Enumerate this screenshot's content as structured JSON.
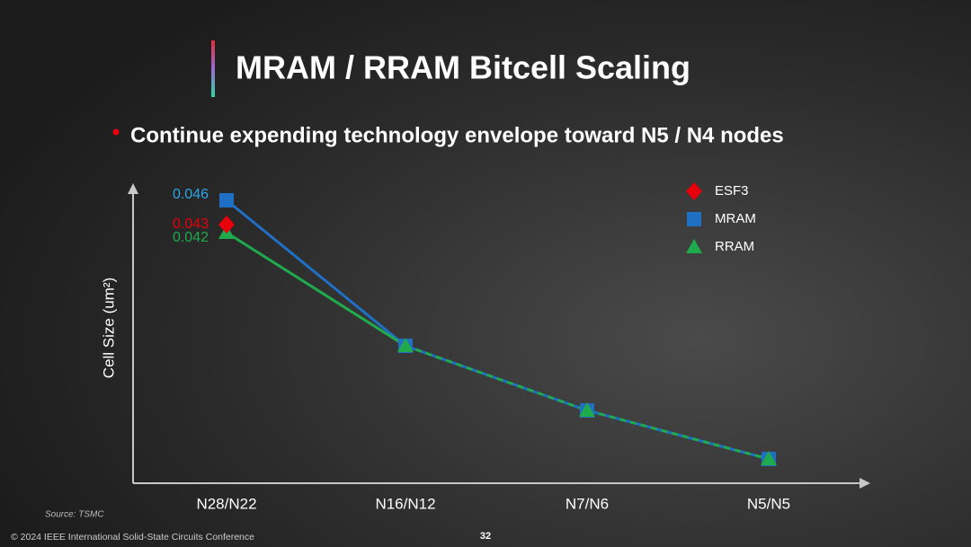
{
  "title": "MRAM / RRAM Bitcell Scaling",
  "bullet": "Continue expending technology envelope toward N5 / N4 nodes",
  "source": "Source: TSMC",
  "footer": "© 2024 IEEE International Solid-State Circuits Conference",
  "page_number": "32",
  "chart_data": {
    "type": "line",
    "y_label": "Cell Size (um²)",
    "categories": [
      "N28/N22",
      "N16/N12",
      "N7/N6",
      "N5/N5"
    ],
    "series": [
      {
        "name": "ESF3",
        "color": "#e8000b",
        "marker": "diamond",
        "values": [
          0.043,
          null,
          null,
          null
        ]
      },
      {
        "name": "MRAM",
        "color": "#1f6fc4",
        "marker": "square",
        "values": [
          0.046,
          0.028,
          0.02,
          0.014
        ]
      },
      {
        "name": "RRAM",
        "color": "#1faa4e",
        "marker": "triangle",
        "values": [
          0.042,
          0.028,
          0.02,
          0.014
        ]
      }
    ],
    "ylim": [
      0.011,
      0.048
    ],
    "legend": "top-right"
  }
}
